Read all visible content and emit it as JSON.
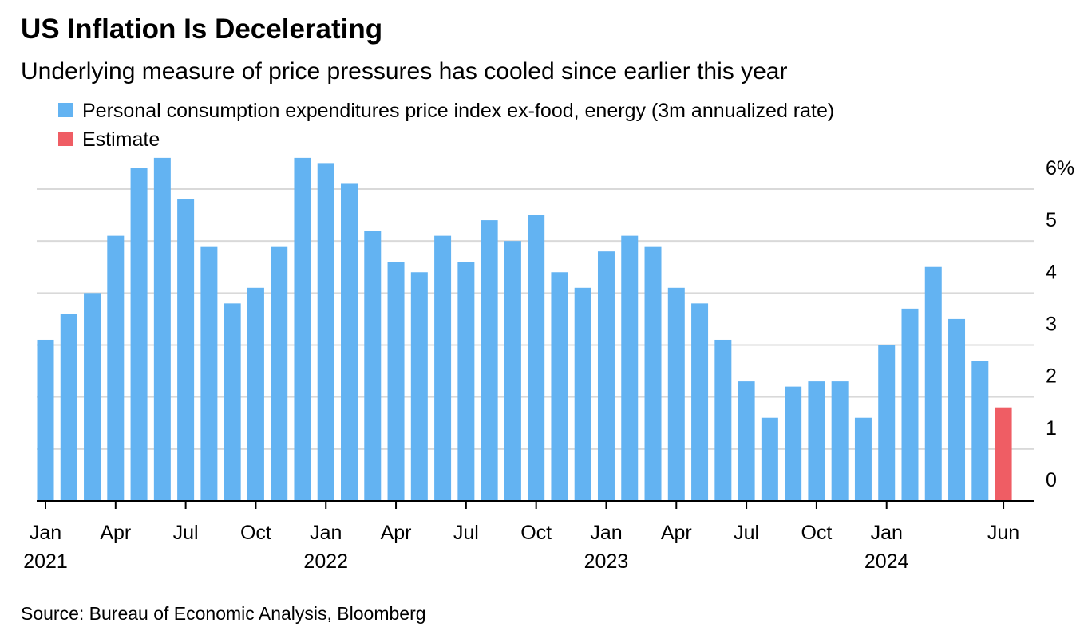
{
  "chart_data": {
    "type": "bar",
    "title": "US Inflation Is Decelerating",
    "subtitle": "Underlying measure of price pressures has cooled since earlier this year",
    "source": "Source: Bureau of Economic Analysis, Bloomberg",
    "categories": [
      "Jan 2021",
      null,
      null,
      "Apr",
      null,
      null,
      "Jul",
      null,
      null,
      "Oct",
      null,
      null,
      "Jan 2022",
      null,
      null,
      "Apr",
      null,
      null,
      "Jul",
      null,
      null,
      "Oct",
      null,
      null,
      "Jan 2023",
      null,
      null,
      "Apr",
      null,
      null,
      "Jul",
      null,
      null,
      "Oct",
      null,
      null,
      "Jan 2024",
      null,
      null,
      null,
      null,
      "Jun"
    ],
    "series": [
      {
        "name": "Personal consumption expenditures price index ex-food, energy (3m annualized rate)",
        "color": "#63b3f2",
        "values": [
          3.1,
          3.6,
          4.0,
          5.1,
          6.4,
          6.6,
          5.8,
          4.9,
          3.8,
          4.1,
          4.9,
          6.6,
          6.5,
          6.1,
          5.2,
          4.6,
          4.4,
          5.1,
          4.6,
          5.4,
          5.0,
          5.5,
          4.4,
          4.1,
          4.8,
          5.1,
          4.9,
          4.1,
          3.8,
          3.1,
          2.3,
          1.6,
          2.2,
          2.3,
          2.3,
          1.6,
          3.0,
          3.7,
          4.5,
          3.5,
          2.7,
          null
        ]
      },
      {
        "name": "Estimate",
        "color": "#ef5d64",
        "values": [
          null,
          null,
          null,
          null,
          null,
          null,
          null,
          null,
          null,
          null,
          null,
          null,
          null,
          null,
          null,
          null,
          null,
          null,
          null,
          null,
          null,
          null,
          null,
          null,
          null,
          null,
          null,
          null,
          null,
          null,
          null,
          null,
          null,
          null,
          null,
          null,
          null,
          null,
          null,
          null,
          null,
          1.8
        ]
      }
    ],
    "ylim": [
      0,
      6.6
    ],
    "yticks": [
      0,
      1,
      2,
      3,
      4,
      5,
      {
        "value": 6,
        "label": "6%"
      }
    ],
    "grid": true
  }
}
